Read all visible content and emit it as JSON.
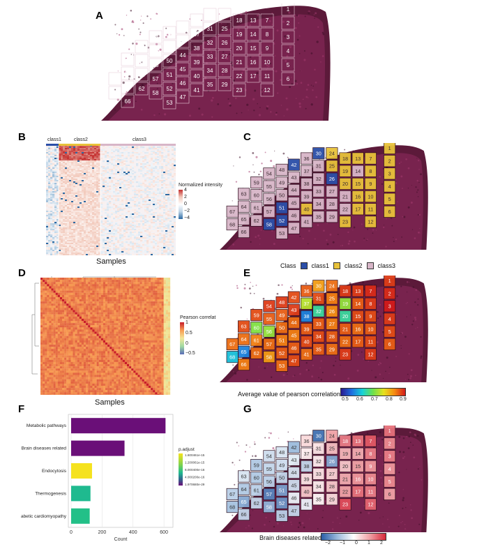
{
  "panels": {
    "A": "A",
    "B": "B",
    "C": "C",
    "D": "D",
    "E": "E",
    "F": "F",
    "G": "G"
  },
  "panel_b": {
    "class_labels": [
      "class1",
      "class2",
      "class3"
    ],
    "legend_title": "Normalized intensity",
    "legend_ticks": [
      "4",
      "2",
      "0",
      "−2",
      "−4"
    ],
    "xlabel": "Samples"
  },
  "panel_c": {
    "legend_title": "Class",
    "legend_items": [
      {
        "label": "class1",
        "color": "#2b4fa8"
      },
      {
        "label": "class2",
        "color": "#e8c23a"
      },
      {
        "label": "class3",
        "color": "#d8b6c8"
      }
    ]
  },
  "panel_d": {
    "legend_title": "Pearson correlat",
    "legend_ticks": [
      "1",
      "0.5",
      "0",
      "−0.5"
    ],
    "xlabel": "Samples"
  },
  "panel_e": {
    "legend_title": "Average value of pearson correlation",
    "legend_ticks": [
      "0.5",
      "0.6",
      "0.7",
      "0.8",
      "0.9"
    ]
  },
  "panel_g": {
    "legend_title": "Brain diseases related",
    "legend_ticks": [
      "−2",
      "−1",
      "0",
      "1",
      "2"
    ]
  },
  "chart_data": {
    "type": "bar",
    "orientation": "horizontal",
    "categories": [
      "Metabolic pathways",
      "Brain diseases related",
      "Endocytosis",
      "Thermogenesis",
      "Diabetic cardiomyopathy"
    ],
    "values": [
      610,
      345,
      135,
      125,
      120
    ],
    "colors": [
      "#6a0f78",
      "#6a0f78",
      "#f5e21e",
      "#1fba8f",
      "#23c088"
    ],
    "xlabel": "Count",
    "xticks": [
      "0",
      "200",
      "400",
      "600"
    ],
    "xlim": [
      0,
      640
    ],
    "legend_title": "p.adjust",
    "legend_ticks": [
      "1.600461e-15",
      "1.200061e-15",
      "8.000400e-16",
      "4.000200e-16",
      "1.970680e-29"
    ]
  },
  "spots": [
    {
      "n": "1",
      "c": "c2",
      "e": 0.88,
      "g": 1.4
    },
    {
      "n": "2",
      "c": "c2",
      "e": 0.89,
      "g": 1.2
    },
    {
      "n": "3",
      "c": "c2",
      "e": 0.9,
      "g": 1.3
    },
    {
      "n": "4",
      "c": "c2",
      "e": 0.88,
      "g": 1.1
    },
    {
      "n": "5",
      "c": "c2",
      "e": 0.87,
      "g": 1.2
    },
    {
      "n": "6",
      "c": "c2",
      "e": 0.86,
      "g": 1.0
    },
    {
      "n": "7",
      "c": "c2",
      "e": 0.89,
      "g": 1.6
    },
    {
      "n": "8",
      "c": "c2",
      "e": 0.88,
      "g": 1.3
    },
    {
      "n": "9",
      "c": "c2",
      "e": 0.87,
      "g": 1.1
    },
    {
      "n": "10",
      "c": "c2",
      "e": 0.86,
      "g": 1.2
    },
    {
      "n": "11",
      "c": "c2",
      "e": 0.87,
      "g": 1.3
    },
    {
      "n": "12",
      "c": "c2",
      "e": 0.88,
      "g": 1.5
    },
    {
      "n": "13",
      "c": "c2",
      "e": 0.88,
      "g": 1.4
    },
    {
      "n": "14",
      "c": "c3",
      "e": 0.86,
      "g": 0.9
    },
    {
      "n": "15",
      "c": "c2",
      "e": 0.87,
      "g": 1.0
    },
    {
      "n": "16",
      "c": "c2",
      "e": 0.85,
      "g": 1.1
    },
    {
      "n": "17",
      "c": "c2",
      "e": 0.86,
      "g": 1.4
    },
    {
      "n": "18",
      "c": "c2",
      "e": 0.88,
      "g": 1.3
    },
    {
      "n": "19",
      "c": "c2",
      "e": 0.72,
      "g": 0.8
    },
    {
      "n": "20",
      "c": "c2",
      "e": 0.66,
      "g": 0.6
    },
    {
      "n": "21",
      "c": "c3",
      "e": 0.86,
      "g": 0.9
    },
    {
      "n": "22",
      "c": "c3",
      "e": 0.85,
      "g": 1.0
    },
    {
      "n": "23",
      "c": "c2",
      "e": 0.88,
      "g": 1.7
    },
    {
      "n": "24",
      "c": "c2",
      "e": 0.85,
      "g": 1.0
    },
    {
      "n": "25",
      "c": "c2",
      "e": 0.84,
      "g": 0.7
    },
    {
      "n": "26",
      "c": "c1",
      "e": 0.83,
      "g": -1.2
    },
    {
      "n": "27",
      "c": "c3",
      "e": 0.84,
      "g": 0.5
    },
    {
      "n": "28",
      "c": "c3",
      "e": 0.86,
      "g": 0.6
    },
    {
      "n": "29",
      "c": "c3",
      "e": 0.85,
      "g": 0.4
    },
    {
      "n": "30",
      "c": "c1",
      "e": 0.82,
      "g": -1.8
    },
    {
      "n": "31",
      "c": "c3",
      "e": 0.87,
      "g": 0.3
    },
    {
      "n": "32",
      "c": "c3",
      "e": 0.66,
      "g": 0.2
    },
    {
      "n": "33",
      "c": "c3",
      "e": 0.86,
      "g": 0.3
    },
    {
      "n": "34",
      "c": "c3",
      "e": 0.87,
      "g": 0.2
    },
    {
      "n": "35",
      "c": "c3",
      "e": 0.86,
      "g": 0.1
    },
    {
      "n": "36",
      "c": "c3",
      "e": 0.86,
      "g": 0.4
    },
    {
      "n": "37",
      "c": "c3",
      "e": 0.74,
      "g": 0.2
    },
    {
      "n": "38",
      "c": "c3",
      "e": 0.58,
      "g": -0.6
    },
    {
      "n": "39",
      "c": "c3",
      "e": 0.86,
      "g": 0.3
    },
    {
      "n": "40",
      "c": "c2",
      "e": 0.87,
      "g": 0.6
    },
    {
      "n": "41",
      "c": "c3",
      "e": 0.85,
      "g": -0.2
    },
    {
      "n": "42",
      "c": "c1",
      "e": 0.87,
      "g": -1.0
    },
    {
      "n": "43",
      "c": "c3",
      "e": 0.88,
      "g": -0.3
    },
    {
      "n": "44",
      "c": "c3",
      "e": 0.85,
      "g": -0.4
    },
    {
      "n": "45",
      "c": "c3",
      "e": 0.84,
      "g": -0.5
    },
    {
      "n": "46",
      "c": "c3",
      "e": 0.86,
      "g": -0.2
    },
    {
      "n": "47",
      "c": "c3",
      "e": 0.87,
      "g": -0.6
    },
    {
      "n": "48",
      "c": "c3",
      "e": 0.88,
      "g": -0.4
    },
    {
      "n": "49",
      "c": "c3",
      "e": 0.86,
      "g": -0.5
    },
    {
      "n": "50",
      "c": "c3",
      "e": 0.85,
      "g": -0.6
    },
    {
      "n": "51",
      "c": "c1",
      "e": 0.84,
      "g": -1.3
    },
    {
      "n": "52",
      "c": "c1",
      "e": 0.86,
      "g": -1.4
    },
    {
      "n": "53",
      "c": "c3",
      "e": 0.85,
      "g": -0.7
    },
    {
      "n": "54",
      "c": "c3",
      "e": 0.88,
      "g": -0.5
    },
    {
      "n": "55",
      "c": "c3",
      "e": 0.86,
      "g": -0.6
    },
    {
      "n": "56",
      "c": "c3",
      "e": 0.72,
      "g": -0.7
    },
    {
      "n": "57",
      "c": "c3",
      "e": 0.85,
      "g": -1.6
    },
    {
      "n": "58",
      "c": "c1",
      "e": 0.82,
      "g": -1.1
    },
    {
      "n": "59",
      "c": "c3",
      "e": 0.87,
      "g": -0.8
    },
    {
      "n": "60",
      "c": "c3",
      "e": 0.71,
      "g": -0.8
    },
    {
      "n": "61",
      "c": "c3",
      "e": 0.84,
      "g": -0.7
    },
    {
      "n": "62",
      "c": "c3",
      "e": 0.85,
      "g": -0.6
    },
    {
      "n": "63",
      "c": "c3",
      "e": 0.87,
      "g": -0.4
    },
    {
      "n": "64",
      "c": "c3",
      "e": 0.85,
      "g": -0.8
    },
    {
      "n": "65",
      "c": "c3",
      "e": 0.58,
      "g": -1.2
    },
    {
      "n": "66",
      "c": "c3",
      "e": 0.84,
      "g": -0.6
    },
    {
      "n": "67",
      "c": "c3",
      "e": 0.85,
      "g": -0.7
    },
    {
      "n": "68",
      "c": "c3",
      "e": 0.62,
      "g": -0.9
    }
  ]
}
